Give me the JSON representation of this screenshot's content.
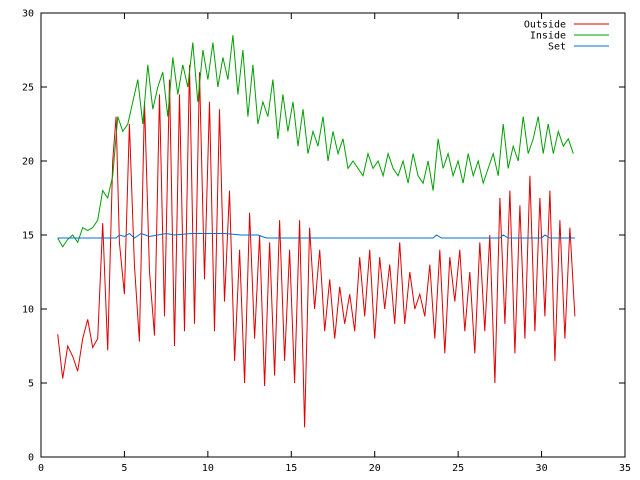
{
  "chart_data": {
    "type": "line",
    "title": "",
    "xlabel": "",
    "ylabel": "",
    "xlim": [
      0,
      35
    ],
    "ylim": [
      0,
      30
    ],
    "xticks": [
      0,
      5,
      10,
      15,
      20,
      25,
      30,
      35
    ],
    "yticks": [
      0,
      5,
      10,
      15,
      20,
      25,
      30
    ],
    "grid": false,
    "legend_position": "top-right",
    "series": [
      {
        "name": "Outside",
        "color": "#e00000",
        "x": [
          1.0,
          1.3,
          1.6,
          1.9,
          2.2,
          2.5,
          2.8,
          3.1,
          3.4,
          3.7,
          4.0,
          4.3,
          4.5,
          4.7,
          5.0,
          5.3,
          5.6,
          5.9,
          6.2,
          6.5,
          6.8,
          7.1,
          7.4,
          7.7,
          8.0,
          8.3,
          8.6,
          8.9,
          9.2,
          9.5,
          9.8,
          10.1,
          10.4,
          10.7,
          11.0,
          11.3,
          11.6,
          11.9,
          12.2,
          12.5,
          12.8,
          13.1,
          13.4,
          13.7,
          14.0,
          14.3,
          14.6,
          14.9,
          15.2,
          15.5,
          15.8,
          16.1,
          16.4,
          16.7,
          17.0,
          17.3,
          17.6,
          17.9,
          18.2,
          18.5,
          18.8,
          19.1,
          19.4,
          19.7,
          20.0,
          20.3,
          20.6,
          20.9,
          21.2,
          21.5,
          21.8,
          22.1,
          22.4,
          22.7,
          23.0,
          23.3,
          23.6,
          23.9,
          24.2,
          24.5,
          24.8,
          25.1,
          25.4,
          25.7,
          26.0,
          26.3,
          26.6,
          26.9,
          27.2,
          27.5,
          27.8,
          28.1,
          28.4,
          28.7,
          29.0,
          29.3,
          29.6,
          29.9,
          30.2,
          30.5,
          30.8,
          31.1,
          31.4,
          31.7,
          32.0
        ],
        "values": [
          8.3,
          5.3,
          7.5,
          6.8,
          5.8,
          8.0,
          9.3,
          7.4,
          8.0,
          15.8,
          7.2,
          20.0,
          23.0,
          14.5,
          11.0,
          22.5,
          13.0,
          7.8,
          24.0,
          12.5,
          8.2,
          24.5,
          9.5,
          25.5,
          7.5,
          24.5,
          8.5,
          26.5,
          9.0,
          26.0,
          12.0,
          24.0,
          8.5,
          23.5,
          10.5,
          18.0,
          6.5,
          14.0,
          5.0,
          16.5,
          8.0,
          15.0,
          4.8,
          14.5,
          5.5,
          16.0,
          6.5,
          14.0,
          5.0,
          16.0,
          2.0,
          15.5,
          10.0,
          14.0,
          8.5,
          12.0,
          8.0,
          11.5,
          9.0,
          11.0,
          8.5,
          13.5,
          9.5,
          14.0,
          8.0,
          13.5,
          10.0,
          13.0,
          9.0,
          14.5,
          9.0,
          12.5,
          10.0,
          11.0,
          9.5,
          13.0,
          8.0,
          14.0,
          7.0,
          13.5,
          10.5,
          14.0,
          8.5,
          12.5,
          7.0,
          14.5,
          8.5,
          15.0,
          5.0,
          17.5,
          9.0,
          18.0,
          7.0,
          17.0,
          8.0,
          19.0,
          8.5,
          17.5,
          9.5,
          18.0,
          6.5,
          16.0,
          8.0,
          15.5,
          9.5
        ]
      },
      {
        "name": "Inside",
        "color": "#00a000",
        "x": [
          1.0,
          1.3,
          1.6,
          1.9,
          2.2,
          2.5,
          2.8,
          3.1,
          3.4,
          3.7,
          4.0,
          4.3,
          4.6,
          4.9,
          5.2,
          5.5,
          5.8,
          6.1,
          6.4,
          6.7,
          7.0,
          7.3,
          7.6,
          7.9,
          8.2,
          8.5,
          8.8,
          9.1,
          9.4,
          9.7,
          10.0,
          10.3,
          10.6,
          10.9,
          11.2,
          11.5,
          11.8,
          12.1,
          12.4,
          12.7,
          13.0,
          13.3,
          13.6,
          13.9,
          14.2,
          14.5,
          14.8,
          15.1,
          15.4,
          15.7,
          16.0,
          16.3,
          16.6,
          16.9,
          17.2,
          17.5,
          17.8,
          18.1,
          18.4,
          18.7,
          19.0,
          19.3,
          19.6,
          19.9,
          20.2,
          20.5,
          20.8,
          21.1,
          21.4,
          21.7,
          22.0,
          22.3,
          22.6,
          22.9,
          23.2,
          23.5,
          23.8,
          24.1,
          24.4,
          24.7,
          25.0,
          25.3,
          25.6,
          25.9,
          26.2,
          26.5,
          26.8,
          27.1,
          27.4,
          27.7,
          28.0,
          28.3,
          28.6,
          28.9,
          29.2,
          29.5,
          29.8,
          30.1,
          30.4,
          30.7,
          31.0,
          31.3,
          31.6,
          31.9
        ],
        "values": [
          14.8,
          14.2,
          14.7,
          15.0,
          14.5,
          15.5,
          15.3,
          15.5,
          16.0,
          18.0,
          17.5,
          19.0,
          23.0,
          22.0,
          22.5,
          24.0,
          25.5,
          22.5,
          26.5,
          23.5,
          25.0,
          26.0,
          23.0,
          27.0,
          24.5,
          26.5,
          25.0,
          28.0,
          24.0,
          27.5,
          25.5,
          28.0,
          25.0,
          27.0,
          25.5,
          28.5,
          24.5,
          27.5,
          23.0,
          26.5,
          22.5,
          24.0,
          23.0,
          25.5,
          21.5,
          24.5,
          22.0,
          24.0,
          21.0,
          23.5,
          20.5,
          22.0,
          21.0,
          23.0,
          20.0,
          22.0,
          20.5,
          21.5,
          19.5,
          20.0,
          19.5,
          19.0,
          20.5,
          19.5,
          20.0,
          19.0,
          20.5,
          19.5,
          19.0,
          20.0,
          18.5,
          20.5,
          19.0,
          18.5,
          20.0,
          18.0,
          21.5,
          19.5,
          20.5,
          19.0,
          20.0,
          18.5,
          20.5,
          19.0,
          20.0,
          18.5,
          19.5,
          20.5,
          19.0,
          22.5,
          19.5,
          21.0,
          20.0,
          23.0,
          20.5,
          21.5,
          23.0,
          20.5,
          22.5,
          20.5,
          22.0,
          21.0,
          21.5,
          20.5
        ]
      },
      {
        "name": "Set",
        "color": "#0070d0",
        "x": [
          1.0,
          4.5,
          4.7,
          5.0,
          5.3,
          5.6,
          6.0,
          6.5,
          7.0,
          7.5,
          8.0,
          9.0,
          10.0,
          11.0,
          12.0,
          13.0,
          13.5,
          14.0,
          17.0,
          20.0,
          23.5,
          23.7,
          24.0,
          27.5,
          27.7,
          28.0,
          30.0,
          30.2,
          30.5,
          32.0
        ],
        "values": [
          14.8,
          14.8,
          15.0,
          14.9,
          15.1,
          14.8,
          15.1,
          14.9,
          15.0,
          15.1,
          15.0,
          15.1,
          15.1,
          15.1,
          15.0,
          15.0,
          14.8,
          14.8,
          14.8,
          14.8,
          14.8,
          15.0,
          14.8,
          14.8,
          15.0,
          14.8,
          14.8,
          15.0,
          14.8,
          14.8
        ]
      }
    ]
  }
}
